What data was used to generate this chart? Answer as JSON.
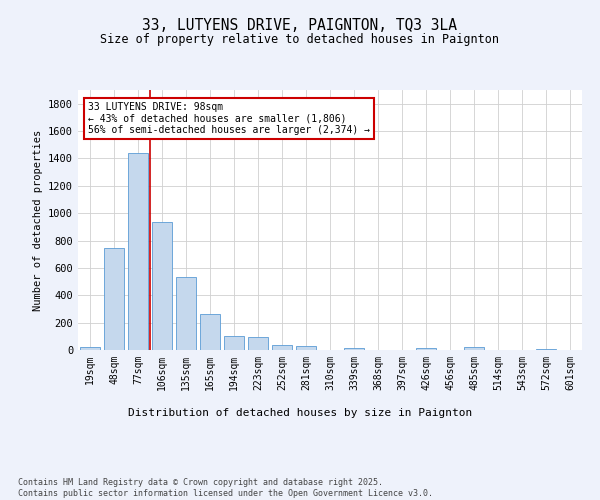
{
  "title_line1": "33, LUTYENS DRIVE, PAIGNTON, TQ3 3LA",
  "title_line2": "Size of property relative to detached houses in Paignton",
  "xlabel": "Distribution of detached houses by size in Paignton",
  "ylabel": "Number of detached properties",
  "categories": [
    "19sqm",
    "48sqm",
    "77sqm",
    "106sqm",
    "135sqm",
    "165sqm",
    "194sqm",
    "223sqm",
    "252sqm",
    "281sqm",
    "310sqm",
    "339sqm",
    "368sqm",
    "397sqm",
    "426sqm",
    "456sqm",
    "485sqm",
    "514sqm",
    "543sqm",
    "572sqm",
    "601sqm"
  ],
  "values": [
    20,
    748,
    1440,
    938,
    535,
    265,
    103,
    93,
    40,
    27,
    0,
    15,
    0,
    0,
    18,
    0,
    20,
    0,
    0,
    10,
    0
  ],
  "bar_color": "#c5d8ed",
  "bar_edge_color": "#5b9bd5",
  "grid_color": "#d0d0d0",
  "vline_color": "#cc0000",
  "annotation_text": "33 LUTYENS DRIVE: 98sqm\n← 43% of detached houses are smaller (1,806)\n56% of semi-detached houses are larger (2,374) →",
  "annotation_box_color": "#cc0000",
  "footnote": "Contains HM Land Registry data © Crown copyright and database right 2025.\nContains public sector information licensed under the Open Government Licence v3.0.",
  "ylim": [
    0,
    1900
  ],
  "yticks": [
    0,
    200,
    400,
    600,
    800,
    1000,
    1200,
    1400,
    1600,
    1800
  ],
  "bg_color": "#eef2fb",
  "plot_bg_color": "#ffffff"
}
